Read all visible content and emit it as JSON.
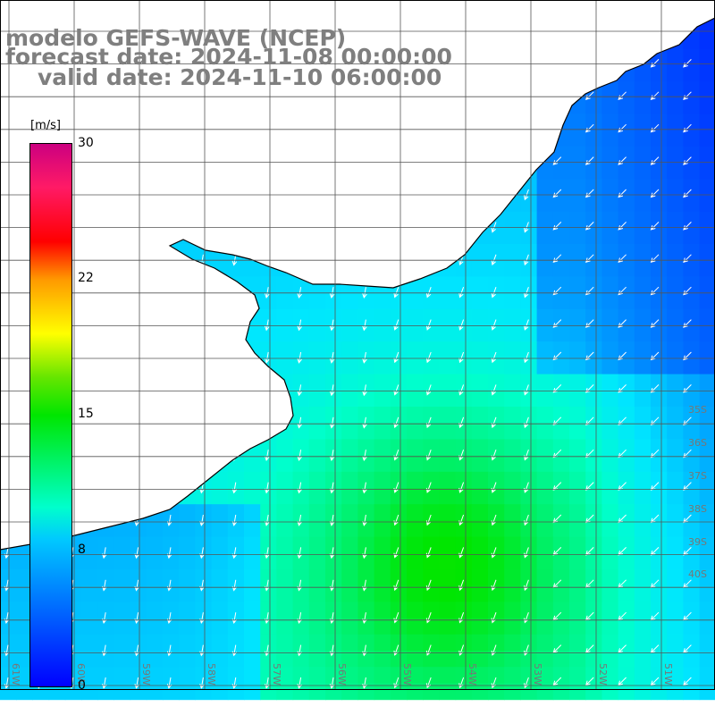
{
  "title": {
    "line1": "modelo GEFS-WAVE (NCEP)",
    "line2": "forecast date: 2024-11-08 00:00:00",
    "line3": "valid date: 2024-11-10 06:00:00"
  },
  "colorbar": {
    "units": "[m/s]",
    "min": 0,
    "max": 30,
    "tick_labels": [
      "30",
      "22",
      "15",
      "8",
      "0"
    ],
    "tick_values": [
      30,
      22,
      15,
      8,
      0
    ],
    "colors": [
      "#0000ff",
      "#00c8ff",
      "#00ffcc",
      "#00e600",
      "#ffff00",
      "#ff9900",
      "#ff0000",
      "#cc0080"
    ]
  },
  "map": {
    "colors": {
      "land": "#ffffff",
      "coast": "#000000",
      "grid": "#555555",
      "arrow": "#ffffff"
    },
    "lon_labels": [
      "61W",
      "60W",
      "59W",
      "58W",
      "57W",
      "56W",
      "55W",
      "54W",
      "53W",
      "52W",
      "51W"
    ],
    "lat_labels": [
      "35S",
      "36S",
      "37S",
      "38S",
      "39S",
      "40S"
    ]
  }
}
